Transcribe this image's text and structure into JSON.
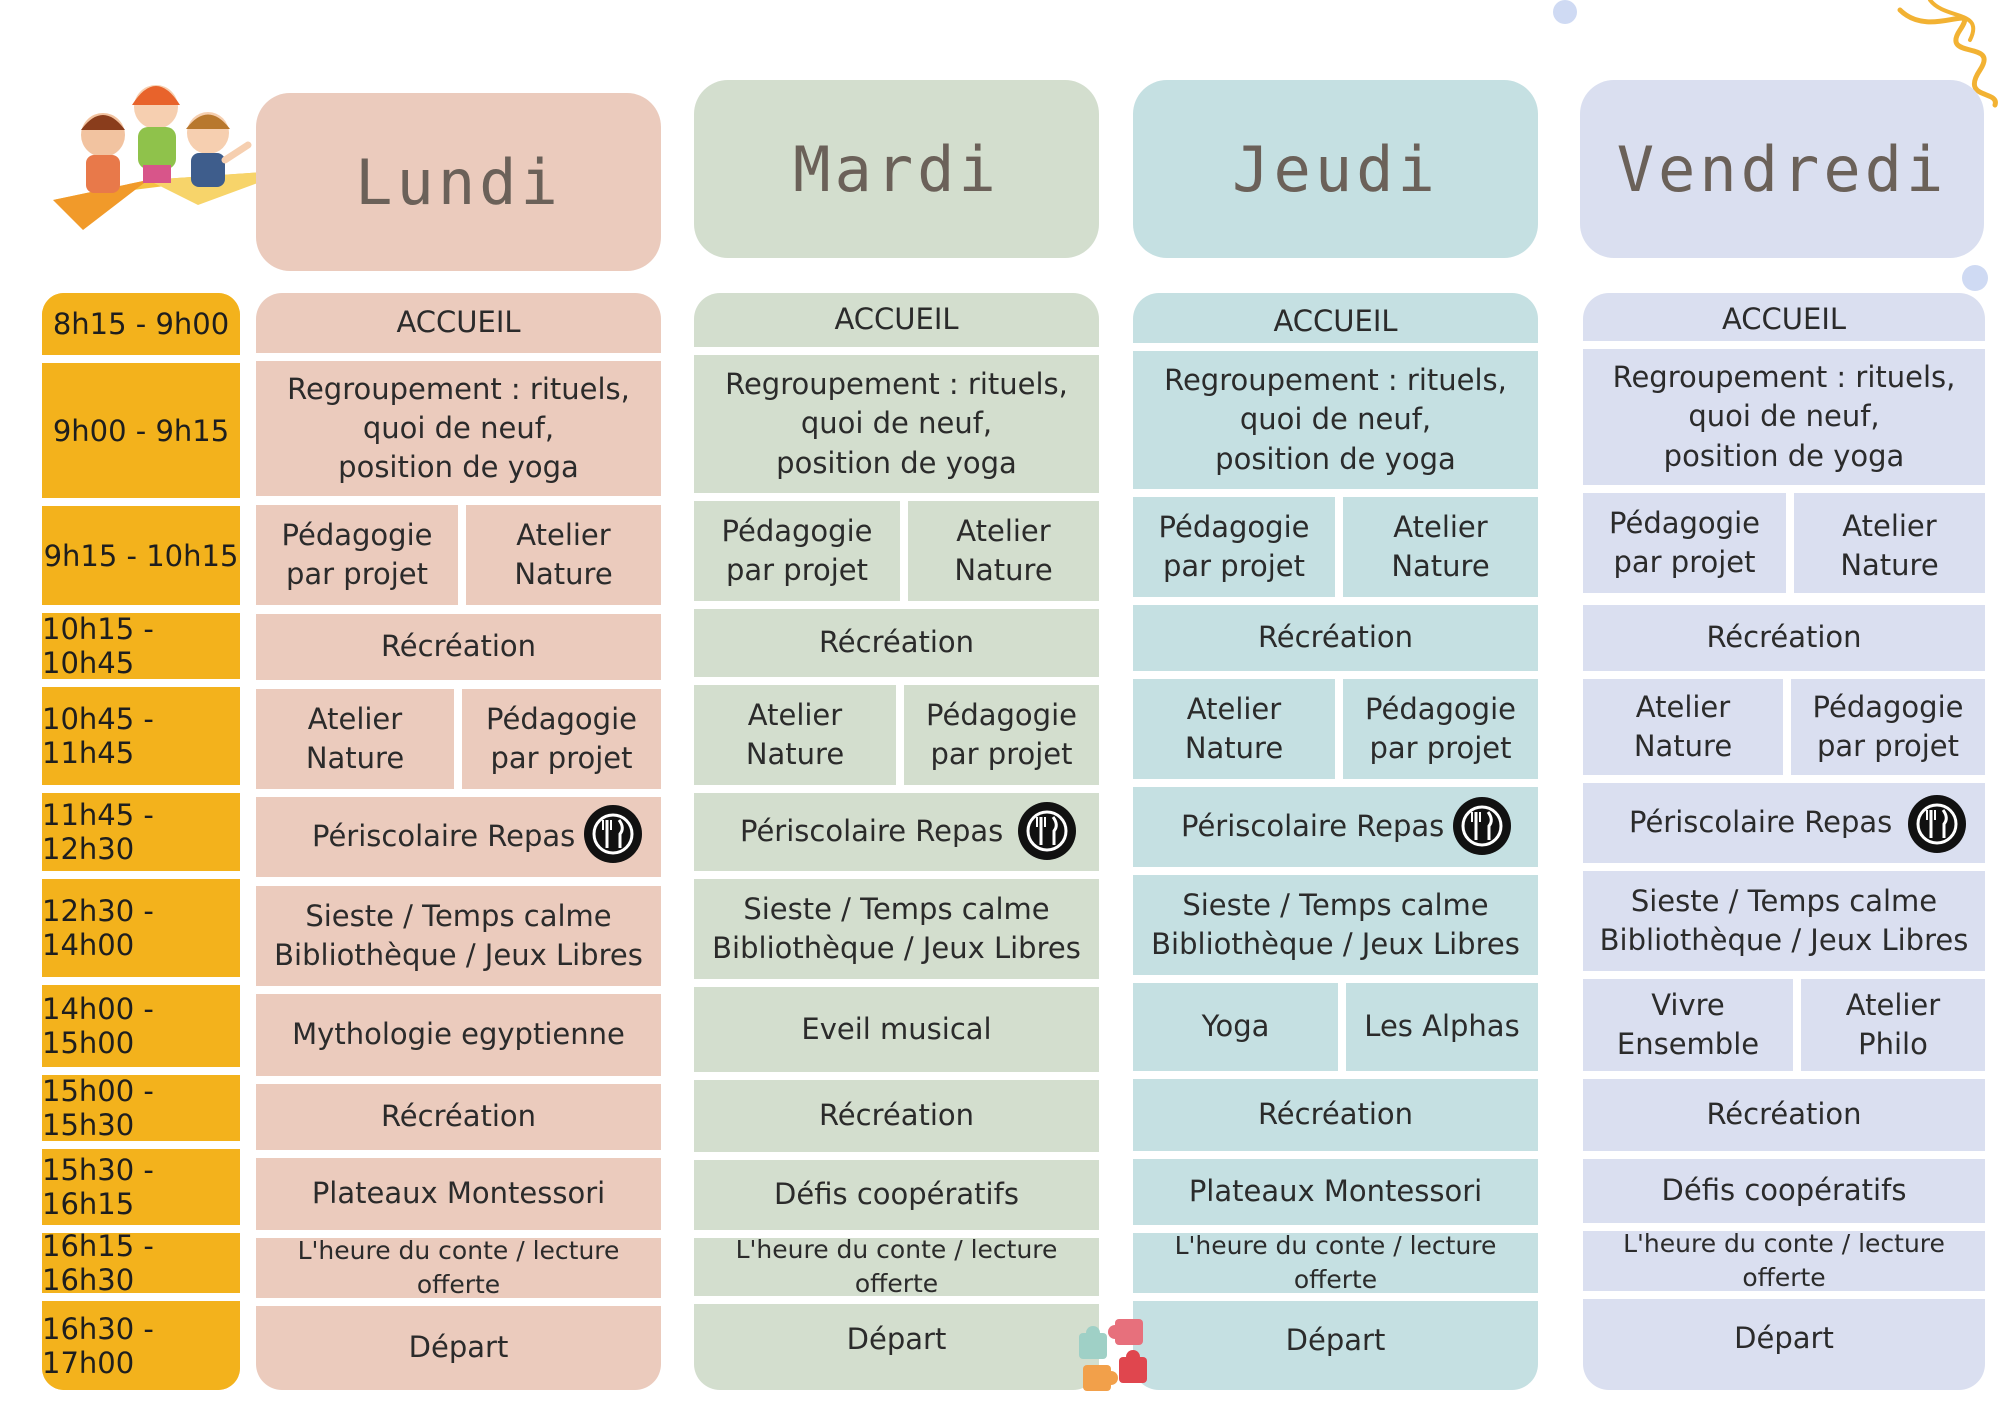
{
  "days": [
    {
      "name": "Lundi",
      "color": "#ebcbbd"
    },
    {
      "name": "Mardi",
      "color": "#d3dece"
    },
    {
      "name": "Jeudi",
      "color": "#c5e0e2"
    },
    {
      "name": "Vendredi",
      "color": "#dadff0"
    }
  ],
  "times": [
    "8h15 - 9h00",
    "9h00 - 9h15",
    "9h15 - 10h15",
    "10h15 - 10h45",
    "10h45 - 11h45",
    "11h45 - 12h30",
    "12h30 - 14h00",
    "14h00 - 15h00",
    "15h00 - 15h30",
    "15h30 - 16h15",
    "16h15 - 16h30",
    "16h30 - 17h00"
  ],
  "schedule": {
    "lundi": [
      "ACCUEIL",
      "Regroupement : rituels,\nquoi de neuf,\nposition de yoga",
      "Pédagogie\npar projet",
      "Atelier\nNature",
      "Récréation",
      "Atelier\nNature",
      "Pédagogie\npar projet",
      "Périscolaire Repas",
      "Sieste / Temps calme\nBibliothèque / Jeux Libres",
      "Mythologie egyptienne",
      "Récréation",
      "Plateaux Montessori",
      "L'heure du conte / lecture offerte",
      "Départ"
    ],
    "mardi": [
      "ACCUEIL",
      "Regroupement : rituels,\nquoi de neuf,\nposition de yoga",
      "Pédagogie\npar projet",
      "Atelier\nNature",
      "Récréation",
      "Atelier\nNature",
      "Pédagogie\npar projet",
      "Périscolaire Repas",
      "Sieste / Temps calme\nBibliothèque / Jeux Libres",
      "Eveil musical",
      "Récréation",
      "Défis coopératifs",
      "L'heure du conte / lecture offerte",
      "Départ"
    ],
    "jeudi": [
      "ACCUEIL",
      "Regroupement : rituels,\nquoi de neuf,\nposition de yoga",
      "Pédagogie\npar projet",
      "Atelier\nNature",
      "Récréation",
      "Atelier\nNature",
      "Pédagogie\npar projet",
      "Périscolaire Repas",
      "Sieste / Temps calme\nBibliothèque / Jeux Libres",
      "Yoga",
      "Les Alphas",
      "Récréation",
      "Plateaux Montessori",
      "L'heure du conte / lecture offerte",
      "Départ"
    ],
    "vendredi": [
      "ACCUEIL",
      "Regroupement : rituels,\nquoi de neuf,\nposition de yoga",
      "Pédagogie\npar projet",
      "Atelier\nNature",
      "Récréation",
      "Atelier\nNature",
      "Pédagogie\npar projet",
      "Périscolaire Repas",
      "Sieste / Temps calme\nBibliothèque / Jeux Libres",
      "Vivre\nEnsemble",
      "Atelier\nPhilo",
      "Récréation",
      "Défis coopératifs",
      "L'heure du conte / lecture offerte",
      "Départ"
    ]
  },
  "icons": {
    "meal": "fork-knife-icon",
    "kids": "kids-paper-plane-illustration",
    "puzzle": "puzzle-pieces-icon",
    "spiral": "spiral-decoration"
  }
}
